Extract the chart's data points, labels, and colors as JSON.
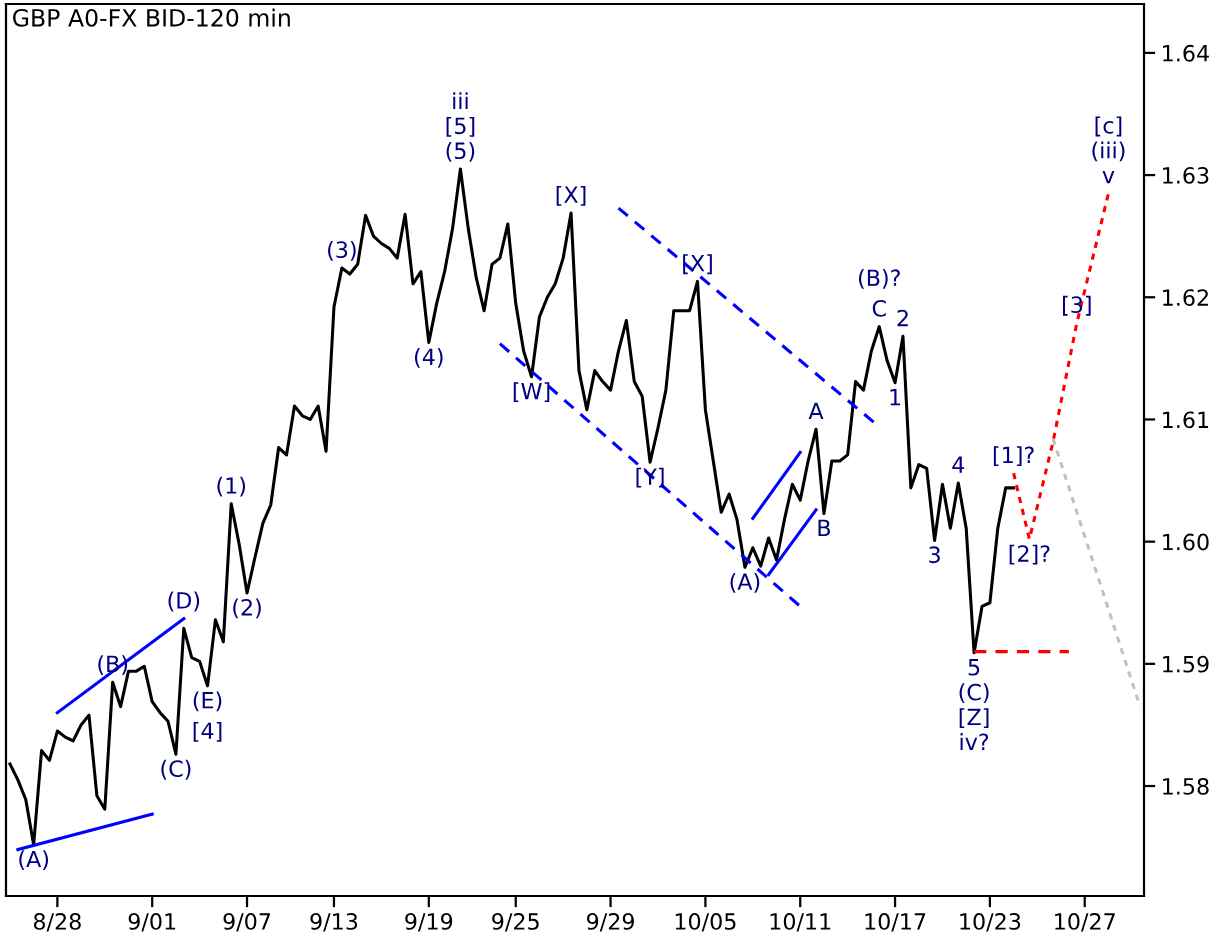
{
  "chart_data": {
    "type": "line",
    "title": "GBP A0-FX BID-120 min",
    "categories": [
      null,
      null,
      null,
      null,
      null,
      null,
      null,
      "8/28",
      null,
      null,
      null,
      null,
      null,
      null,
      null,
      null,
      null,
      null,
      null,
      "9/01",
      null,
      null,
      null,
      null,
      null,
      null,
      null,
      null,
      null,
      null,
      null,
      "9/07",
      null,
      null,
      null,
      null,
      null,
      null,
      null,
      null,
      null,
      null,
      "9/13",
      null,
      null,
      null,
      null,
      null,
      null,
      null,
      null,
      null,
      null,
      null,
      "9/19",
      null,
      null,
      null,
      null,
      null,
      null,
      null,
      null,
      null,
      null,
      "9/25",
      null,
      null,
      null,
      null,
      null,
      null,
      null,
      null,
      null,
      null,
      null,
      "9/29",
      null,
      null,
      null,
      null,
      null,
      null,
      null,
      null,
      null,
      null,
      null,
      "10/05",
      null,
      null,
      null,
      null,
      null,
      null,
      null,
      null,
      null,
      null,
      null,
      "10/11",
      null,
      null,
      null,
      null,
      null,
      null,
      null,
      null,
      null,
      null,
      null,
      "10/17",
      null,
      null,
      null,
      null,
      null,
      null,
      null,
      null,
      null,
      null,
      null,
      "10/23",
      null,
      null,
      null,
      null,
      null,
      null,
      null,
      null,
      null,
      null,
      null,
      "10/27",
      null,
      null,
      null,
      null,
      null,
      null,
      null
    ],
    "ylim": [
      1.571,
      1.644
    ],
    "yticks": [
      {
        "value": 1.58,
        "label": "1.58"
      },
      {
        "value": 1.59,
        "label": "1.59"
      },
      {
        "value": 1.6,
        "label": "1.60"
      },
      {
        "value": 1.61,
        "label": "1.61"
      },
      {
        "value": 1.62,
        "label": "1.62"
      },
      {
        "value": 1.63,
        "label": "1.63"
      },
      {
        "value": 1.64,
        "label": "1.64"
      }
    ],
    "grid": false,
    "series": [
      {
        "color": "#000000",
        "line_style": "solid",
        "values": [
          null,
          1.5818,
          1.5805,
          1.5789,
          1.5752,
          1.5829,
          1.5821,
          1.5845,
          1.584,
          1.5837,
          1.585,
          1.5858,
          1.5792,
          1.5781,
          1.5885,
          1.5865,
          1.5894,
          1.5894,
          1.5898,
          1.5869,
          1.586,
          1.5853,
          1.5826,
          1.5929,
          1.5905,
          1.5902,
          1.5882,
          1.5936,
          1.5918,
          1.6031,
          1.5998,
          1.5958,
          1.5987,
          1.6015,
          1.603,
          1.6077,
          1.6071,
          1.6111,
          1.6103,
          1.61,
          1.6111,
          1.6074,
          1.6192,
          1.6224,
          1.6219,
          1.6227,
          1.6267,
          1.625,
          1.6244,
          1.624,
          1.6232,
          1.6268,
          1.6211,
          1.6221,
          1.6163,
          1.6195,
          1.6221,
          1.6256,
          1.6305,
          1.6256,
          1.6216,
          1.6189,
          1.6227,
          1.6232,
          1.626,
          1.6195,
          1.6156,
          1.6135,
          1.6184,
          1.62,
          1.6211,
          1.6232,
          1.6269,
          1.614,
          1.6108,
          1.614,
          1.6131,
          1.6124,
          1.6156,
          1.6181,
          1.6131,
          1.6119,
          1.6065,
          1.6093,
          1.6124,
          1.6189,
          1.6189,
          1.6189,
          1.6213,
          1.6108,
          1.6066,
          1.6024,
          1.6039,
          1.6018,
          1.5979,
          1.5995,
          1.598,
          1.6003,
          1.5985,
          1.6018,
          1.6047,
          1.6034,
          1.6066,
          1.6092,
          1.6023,
          1.6066,
          1.6066,
          1.6071,
          1.6131,
          1.6124,
          1.6156,
          1.6176,
          1.6148,
          1.613,
          1.6168,
          1.6044,
          1.6063,
          1.606,
          1.6001,
          1.6047,
          1.6011,
          1.6048,
          1.6011,
          1.5909,
          1.5947,
          1.595,
          1.6011,
          1.6044,
          1.6044,
          null,
          null,
          null,
          null,
          null,
          null,
          null,
          null,
          null,
          null,
          null,
          null,
          null,
          null,
          null,
          null
        ]
      },
      {
        "color": "#ff0000",
        "line_style": "dotted",
        "values": [
          null,
          null,
          null,
          null,
          null,
          null,
          null,
          null,
          null,
          null,
          null,
          null,
          null,
          null,
          null,
          null,
          null,
          null,
          null,
          null,
          null,
          null,
          null,
          null,
          null,
          null,
          null,
          null,
          null,
          null,
          null,
          null,
          null,
          null,
          null,
          null,
          null,
          null,
          null,
          null,
          null,
          null,
          null,
          null,
          null,
          null,
          null,
          null,
          null,
          null,
          null,
          null,
          null,
          null,
          null,
          null,
          null,
          null,
          null,
          null,
          null,
          null,
          null,
          null,
          null,
          null,
          null,
          null,
          null,
          null,
          null,
          null,
          null,
          null,
          null,
          null,
          null,
          null,
          null,
          null,
          null,
          null,
          null,
          null,
          null,
          null,
          null,
          null,
          null,
          null,
          null,
          null,
          null,
          null,
          null,
          null,
          null,
          null,
          null,
          null,
          null,
          null,
          null,
          null,
          null,
          null,
          null,
          null,
          null,
          null,
          null,
          null,
          null,
          null,
          null,
          null,
          null,
          null,
          null,
          null,
          null,
          null,
          null,
          null,
          null,
          null,
          null,
          null,
          1.6056,
          null,
          1.6002,
          null,
          null,
          1.6082,
          null,
          null,
          1.6179,
          null,
          null,
          null,
          1.6285,
          null,
          null,
          null,
          null
        ]
      },
      {
        "color": "#c0c0c0",
        "line_style": "dotted",
        "values": [
          null,
          null,
          null,
          null,
          null,
          null,
          null,
          null,
          null,
          null,
          null,
          null,
          null,
          null,
          null,
          null,
          null,
          null,
          null,
          null,
          null,
          null,
          null,
          null,
          null,
          null,
          null,
          null,
          null,
          null,
          null,
          null,
          null,
          null,
          null,
          null,
          null,
          null,
          null,
          null,
          null,
          null,
          null,
          null,
          null,
          null,
          null,
          null,
          null,
          null,
          null,
          null,
          null,
          null,
          null,
          null,
          null,
          null,
          null,
          null,
          null,
          null,
          null,
          null,
          null,
          null,
          null,
          null,
          null,
          null,
          null,
          null,
          null,
          null,
          null,
          null,
          null,
          null,
          null,
          null,
          null,
          null,
          null,
          null,
          null,
          null,
          null,
          null,
          null,
          null,
          null,
          null,
          null,
          null,
          null,
          null,
          null,
          null,
          null,
          null,
          null,
          null,
          null,
          null,
          null,
          null,
          null,
          null,
          null,
          null,
          null,
          null,
          null,
          null,
          null,
          null,
          null,
          null,
          null,
          null,
          null,
          null,
          null,
          null,
          null,
          null,
          null,
          null,
          null,
          null,
          null,
          null,
          null,
          1.6084,
          null,
          null,
          null,
          null,
          null,
          null,
          null,
          null,
          null,
          null,
          1.5865
        ]
      },
      {
        "color": "#ff0000",
        "line_style": "dashed",
        "values": [
          null,
          null,
          null,
          null,
          null,
          null,
          null,
          null,
          null,
          null,
          null,
          null,
          null,
          null,
          null,
          null,
          null,
          null,
          null,
          null,
          null,
          null,
          null,
          null,
          null,
          null,
          null,
          null,
          null,
          null,
          null,
          null,
          null,
          null,
          null,
          null,
          null,
          null,
          null,
          null,
          null,
          null,
          null,
          null,
          null,
          null,
          null,
          null,
          null,
          null,
          null,
          null,
          null,
          null,
          null,
          null,
          null,
          null,
          null,
          null,
          null,
          null,
          null,
          null,
          null,
          null,
          null,
          null,
          null,
          null,
          null,
          null,
          null,
          null,
          null,
          null,
          null,
          null,
          null,
          null,
          null,
          null,
          null,
          null,
          null,
          null,
          null,
          null,
          null,
          null,
          null,
          null,
          null,
          null,
          null,
          null,
          null,
          null,
          null,
          null,
          null,
          null,
          null,
          null,
          null,
          null,
          null,
          null,
          null,
          null,
          null,
          null,
          null,
          null,
          null,
          null,
          null,
          null,
          null,
          null,
          null,
          null,
          null,
          1.591,
          null,
          null,
          null,
          null,
          null,
          null,
          null,
          null,
          null,
          null,
          null,
          1.591,
          null,
          null,
          null,
          null,
          null,
          null,
          null,
          null,
          null
        ]
      },
      {
        "color": "#0000ff",
        "line_style": "solid",
        "values": [
          null,
          null,
          null,
          null,
          null,
          null,
          null,
          1.586,
          null,
          null,
          null,
          null,
          null,
          null,
          null,
          null,
          null,
          null,
          null,
          null,
          null,
          null,
          null,
          1.5937,
          null,
          null,
          null,
          null,
          null,
          null,
          null,
          null,
          null,
          null,
          null,
          null,
          null,
          null,
          null,
          null,
          null,
          null,
          null,
          null,
          null,
          null,
          null,
          null,
          null,
          null,
          null,
          null,
          null,
          null,
          null,
          null,
          null,
          null,
          null,
          null,
          null,
          null,
          null,
          null,
          null,
          null,
          null,
          null,
          null,
          null,
          null,
          null,
          null,
          null,
          null,
          null,
          null,
          null,
          null,
          null,
          null,
          null,
          null,
          null,
          null,
          null,
          null,
          null,
          null,
          null,
          null,
          null,
          null,
          null,
          null,
          null,
          null,
          null,
          null,
          null,
          null,
          null,
          null,
          null,
          null,
          null,
          null,
          null,
          null,
          null,
          null,
          null,
          null,
          null,
          null,
          null,
          null,
          null,
          null,
          null,
          null,
          null,
          null,
          null,
          null,
          null,
          null,
          null,
          null,
          null,
          null,
          null,
          null,
          null,
          null,
          null,
          null,
          null,
          null,
          null,
          null,
          null,
          null,
          null,
          null
        ]
      },
      {
        "color": "#0000ff",
        "line_style": "solid",
        "values": [
          null,
          null,
          1.5748,
          null,
          null,
          null,
          null,
          null,
          null,
          null,
          null,
          null,
          null,
          null,
          null,
          null,
          null,
          null,
          null,
          1.5777,
          null,
          null,
          null,
          null,
          null,
          null,
          null,
          null,
          null,
          null,
          null,
          null,
          null,
          null,
          null,
          null,
          null,
          null,
          null,
          null,
          null,
          null,
          null,
          null,
          null,
          null,
          null,
          null,
          null,
          null,
          null,
          null,
          null,
          null,
          null,
          null,
          null,
          null,
          null,
          null,
          null,
          null,
          null,
          null,
          null,
          null,
          null,
          null,
          null,
          null,
          null,
          null,
          null,
          null,
          null,
          null,
          null,
          null,
          null,
          null,
          null,
          null,
          null,
          null,
          null,
          null,
          null,
          null,
          null,
          null,
          null,
          null,
          null,
          null,
          null,
          null,
          null,
          null,
          null,
          null,
          null,
          null,
          null,
          null,
          null,
          null,
          null,
          null,
          null,
          null,
          null,
          null,
          null,
          null,
          null,
          null,
          null,
          null,
          null,
          null,
          null,
          null,
          null,
          null,
          null,
          null,
          null,
          null,
          null,
          null,
          null,
          null,
          null,
          null,
          null,
          null,
          null,
          null,
          null,
          null,
          null,
          null,
          null,
          null,
          null
        ]
      },
      {
        "color": "#0000ff",
        "line_style": "dashed",
        "values": [
          null,
          null,
          null,
          null,
          null,
          null,
          null,
          null,
          null,
          null,
          null,
          null,
          null,
          null,
          null,
          null,
          null,
          null,
          null,
          null,
          null,
          null,
          null,
          null,
          null,
          null,
          null,
          null,
          null,
          null,
          null,
          null,
          null,
          null,
          null,
          null,
          null,
          null,
          null,
          null,
          null,
          null,
          null,
          null,
          null,
          null,
          null,
          null,
          null,
          null,
          null,
          null,
          null,
          null,
          null,
          null,
          null,
          null,
          null,
          null,
          null,
          null,
          null,
          null,
          null,
          null,
          null,
          null,
          null,
          null,
          null,
          null,
          null,
          null,
          null,
          null,
          null,
          null,
          1.6273,
          null,
          null,
          null,
          null,
          null,
          null,
          null,
          null,
          null,
          null,
          null,
          null,
          null,
          null,
          null,
          null,
          null,
          null,
          null,
          null,
          null,
          null,
          null,
          null,
          null,
          null,
          null,
          null,
          null,
          null,
          null,
          null,
          1.6094,
          null,
          null,
          null,
          null,
          null,
          null,
          null,
          null,
          null,
          null,
          null,
          null,
          null,
          null,
          null,
          null,
          null,
          null,
          null,
          null,
          null,
          null,
          null,
          null,
          null,
          null,
          null,
          null,
          null,
          null,
          null,
          null,
          null
        ]
      },
      {
        "color": "#0000ff",
        "line_style": "dashed",
        "values": [
          null,
          null,
          null,
          null,
          null,
          null,
          null,
          null,
          null,
          null,
          null,
          null,
          null,
          null,
          null,
          null,
          null,
          null,
          null,
          null,
          null,
          null,
          null,
          null,
          null,
          null,
          null,
          null,
          null,
          null,
          null,
          null,
          null,
          null,
          null,
          null,
          null,
          null,
          null,
          null,
          null,
          null,
          null,
          null,
          null,
          null,
          null,
          null,
          null,
          null,
          null,
          null,
          null,
          null,
          null,
          null,
          null,
          null,
          null,
          null,
          null,
          null,
          null,
          1.6162,
          null,
          null,
          null,
          null,
          null,
          null,
          null,
          null,
          null,
          null,
          null,
          null,
          null,
          null,
          null,
          null,
          null,
          null,
          null,
          null,
          null,
          null,
          null,
          null,
          null,
          null,
          null,
          null,
          null,
          null,
          null,
          null,
          null,
          null,
          null,
          null,
          null,
          1.5947,
          null,
          null,
          null,
          null,
          null,
          null,
          null,
          null,
          null,
          null,
          null,
          null,
          null,
          null,
          null,
          null,
          null,
          null,
          null,
          null,
          null,
          null,
          null,
          null,
          null,
          null,
          null,
          null,
          null,
          null,
          null,
          null,
          null,
          null,
          null,
          null,
          null,
          null,
          null,
          null,
          null,
          null,
          null
        ]
      },
      {
        "color": "#0000ff",
        "line_style": "solid",
        "values": [
          null,
          null,
          null,
          null,
          null,
          null,
          null,
          null,
          null,
          null,
          null,
          null,
          null,
          null,
          null,
          null,
          null,
          null,
          null,
          null,
          null,
          null,
          null,
          null,
          null,
          null,
          null,
          null,
          null,
          null,
          null,
          null,
          null,
          null,
          null,
          null,
          null,
          null,
          null,
          null,
          null,
          null,
          null,
          null,
          null,
          null,
          null,
          null,
          null,
          null,
          null,
          null,
          null,
          null,
          null,
          null,
          null,
          null,
          null,
          null,
          null,
          null,
          null,
          null,
          null,
          null,
          null,
          null,
          null,
          null,
          null,
          null,
          null,
          null,
          null,
          null,
          null,
          null,
          null,
          null,
          null,
          null,
          null,
          null,
          null,
          null,
          null,
          null,
          null,
          null,
          null,
          null,
          null,
          null,
          null,
          1.6019,
          null,
          null,
          null,
          null,
          null,
          1.6073,
          null,
          null,
          null,
          null,
          null,
          null,
          null,
          null,
          null,
          null,
          null,
          null,
          null,
          null,
          null,
          null,
          null,
          null,
          null,
          null,
          null,
          null,
          null,
          null,
          null,
          null,
          null,
          null,
          null,
          null,
          null,
          null,
          null,
          null,
          null,
          null,
          null,
          null,
          null,
          null,
          null,
          null,
          null
        ]
      },
      {
        "color": "#0000ff",
        "line_style": "solid",
        "values": [
          null,
          null,
          null,
          null,
          null,
          null,
          null,
          null,
          null,
          null,
          null,
          null,
          null,
          null,
          null,
          null,
          null,
          null,
          null,
          null,
          null,
          null,
          null,
          null,
          null,
          null,
          null,
          null,
          null,
          null,
          null,
          null,
          null,
          null,
          null,
          null,
          null,
          null,
          null,
          null,
          null,
          null,
          null,
          null,
          null,
          null,
          null,
          null,
          null,
          null,
          null,
          null,
          null,
          null,
          null,
          null,
          null,
          null,
          null,
          null,
          null,
          null,
          null,
          null,
          null,
          null,
          null,
          null,
          null,
          null,
          null,
          null,
          null,
          null,
          null,
          null,
          null,
          null,
          null,
          null,
          null,
          null,
          null,
          null,
          null,
          null,
          null,
          null,
          null,
          null,
          null,
          null,
          null,
          null,
          null,
          null,
          null,
          1.5973,
          null,
          null,
          null,
          null,
          null,
          1.6026,
          null,
          null,
          null,
          null,
          null,
          null,
          null,
          null,
          null,
          null,
          null,
          null,
          null,
          null,
          null,
          null,
          null,
          null,
          null,
          null,
          null,
          null,
          null,
          null,
          null,
          null,
          null,
          null,
          null,
          null,
          null,
          null,
          null,
          null,
          null,
          null,
          null,
          null,
          null,
          null,
          null
        ]
      }
    ],
    "annotations": [
      {
        "text": "(A)",
        "y": 1.5752
      },
      {
        "text": "(B)",
        "y": 1.5885
      },
      {
        "text": "(C)",
        "y": 1.5826
      },
      {
        "text": "(D)",
        "y": 1.5937
      },
      {
        "text": "(E)",
        "y": 1.5882
      },
      {
        "text": "[4]",
        "y": 1.5882
      },
      {
        "text": "(1)",
        "y": 1.6031
      },
      {
        "text": "(2)",
        "y": 1.5958
      },
      {
        "text": "(3)",
        "y": 1.6224
      },
      {
        "text": "(4)",
        "y": 1.6163
      },
      {
        "text": "iii\n[5]\n(5)",
        "y": 1.6305
      },
      {
        "text": "[W]",
        "y": 1.6135
      },
      {
        "text": "[X]",
        "y": 1.6269
      },
      {
        "text": "[Y]",
        "y": 1.6065
      },
      {
        "text": "[X]",
        "y": 1.6213
      },
      {
        "text": "(A)",
        "y": 1.5979
      },
      {
        "text": "A",
        "y": 1.6092
      },
      {
        "text": "B",
        "y": 1.6023
      },
      {
        "text": "C",
        "y": 1.6176
      },
      {
        "text": "(B)?",
        "y": 1.6176
      },
      {
        "text": "1",
        "y": 1.613
      },
      {
        "text": "2",
        "y": 1.6168
      },
      {
        "text": "3",
        "y": 1.6001
      },
      {
        "text": "4",
        "y": 1.6048
      },
      {
        "text": "5\n(C)\n[Z]\niv?",
        "y": 1.5909
      },
      {
        "text": "[1]?",
        "y": 1.6056
      },
      {
        "text": "[2]?",
        "y": 1.6002
      },
      {
        "text": "[3]",
        "y": 1.6179
      },
      {
        "text": "[c]\n(iii)\nv",
        "y": 1.6285
      }
    ]
  }
}
